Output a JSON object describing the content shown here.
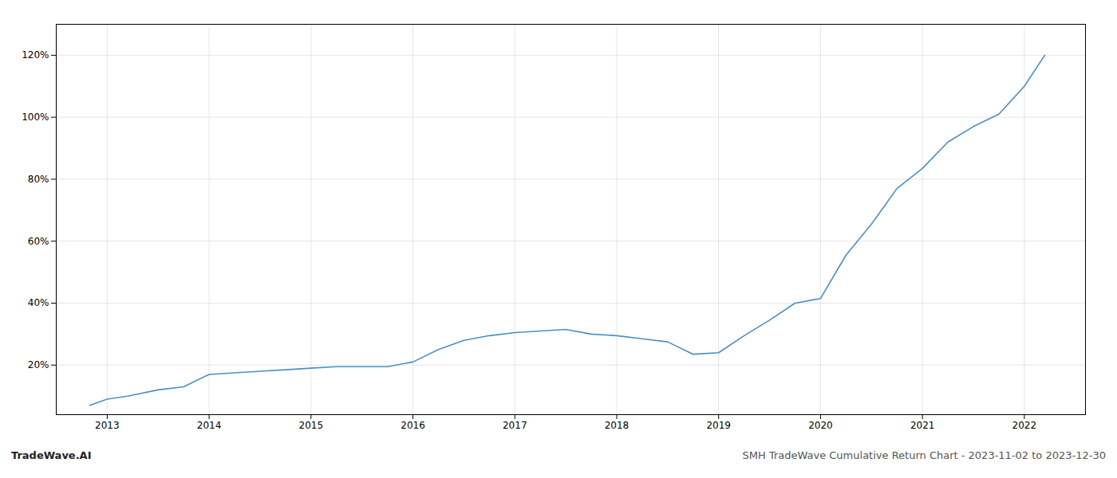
{
  "chart_data": {
    "type": "line",
    "title": "SMH TradeWave Cumulative Return Chart - 2023-11-02 to 2023-12-30",
    "annotations": [
      "TradeWave.AI"
    ],
    "color": "#4a90c4",
    "x": [
      2012.83,
      2013.0,
      2013.2,
      2013.5,
      2013.75,
      2014.0,
      2014.25,
      2014.5,
      2014.75,
      2015.0,
      2015.25,
      2015.5,
      2015.75,
      2016.0,
      2016.25,
      2016.5,
      2016.75,
      2017.0,
      2017.25,
      2017.5,
      2017.75,
      2018.0,
      2018.25,
      2018.5,
      2018.75,
      2019.0,
      2019.25,
      2019.5,
      2019.75,
      2020.0,
      2020.25,
      2020.5,
      2020.75,
      2021.0,
      2021.25,
      2021.5,
      2021.75,
      2022.0,
      2022.2
    ],
    "values": [
      0.07,
      0.09,
      0.1,
      0.12,
      0.13,
      0.17,
      0.175,
      0.18,
      0.185,
      0.19,
      0.195,
      0.195,
      0.195,
      0.21,
      0.25,
      0.28,
      0.295,
      0.305,
      0.31,
      0.315,
      0.3,
      0.295,
      0.285,
      0.275,
      0.235,
      0.24,
      0.295,
      0.345,
      0.4,
      0.415,
      0.555,
      0.655,
      0.77,
      0.835,
      0.92,
      0.97,
      1.01,
      1.1,
      1.2
    ],
    "xlim": [
      2012.5,
      2022.6
    ],
    "xticks": [
      2013,
      2014,
      2015,
      2016,
      2017,
      2018,
      2019,
      2020,
      2021,
      2022
    ],
    "ylim": [
      0.04,
      1.3
    ],
    "yticks": [
      {
        "value": 0.2,
        "label": "20%"
      },
      {
        "value": 0.4,
        "label": "40%"
      },
      {
        "value": 0.6,
        "label": "60%"
      },
      {
        "value": 0.8,
        "label": "80%"
      },
      {
        "value": 1.0,
        "label": "100%"
      },
      {
        "value": 1.2,
        "label": "120%"
      }
    ],
    "grid": true
  }
}
